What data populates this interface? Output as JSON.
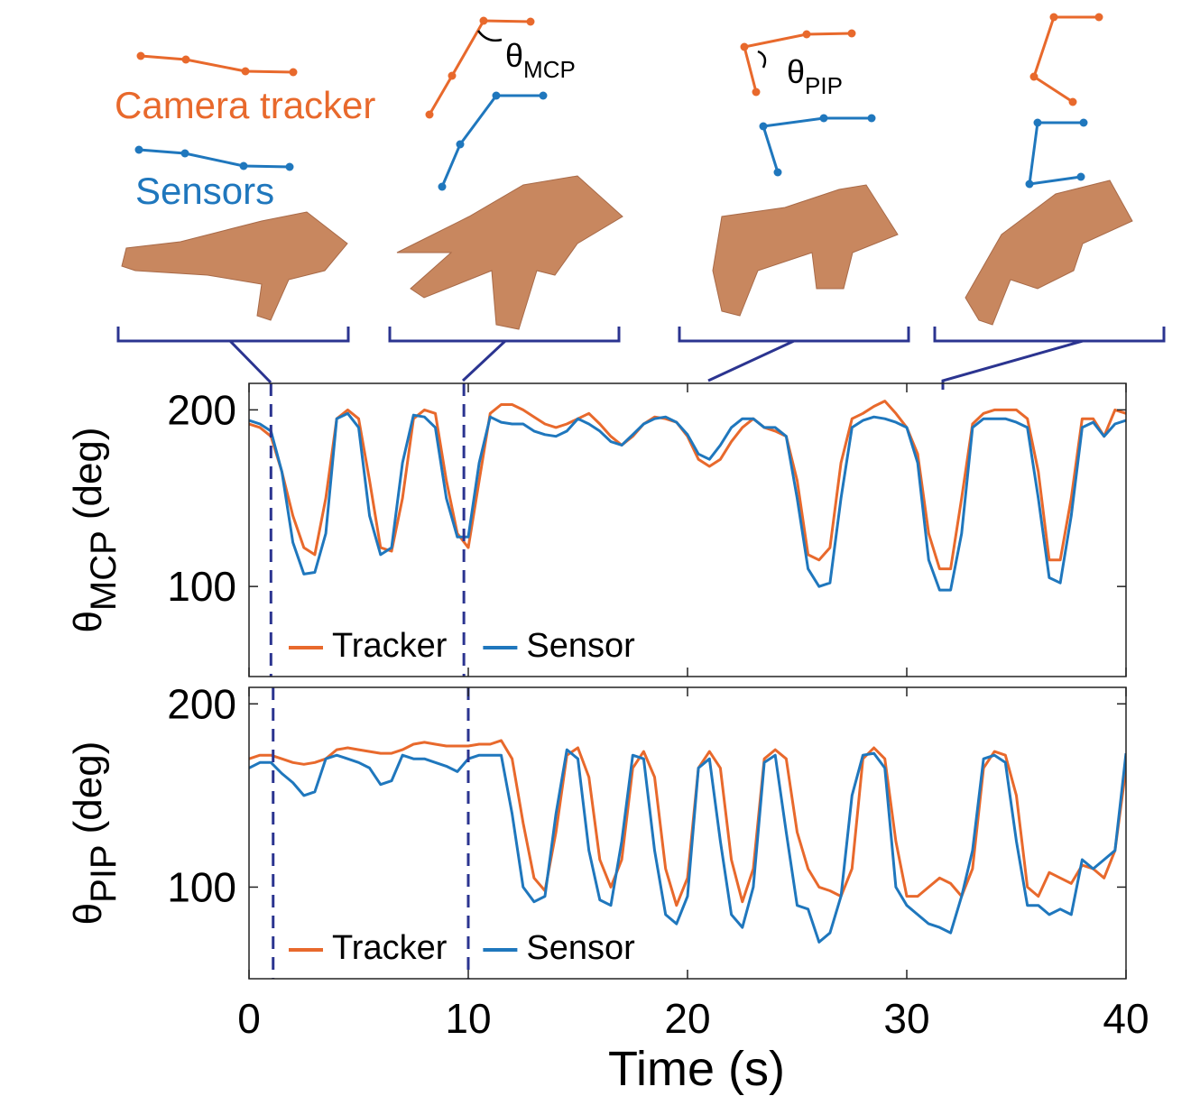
{
  "header": {
    "tracker_label": "Camera tracker",
    "sensor_label": "Sensors",
    "angle_mcp": {
      "symbol": "θ",
      "subscript": "MCP"
    },
    "angle_pip": {
      "symbol": "θ",
      "subscript": "PIP"
    }
  },
  "chart_data": [
    {
      "type": "line",
      "ylabel": {
        "symbol": "θ",
        "subscript": "MCP",
        "unit": "(deg)"
      },
      "x": [
        0,
        0.5,
        1,
        1.5,
        2,
        2.5,
        3,
        3.5,
        4,
        4.5,
        5,
        5.5,
        6,
        6.5,
        7,
        7.5,
        8,
        8.5,
        9,
        9.5,
        10,
        10.5,
        11,
        11.5,
        12,
        12.5,
        13,
        13.5,
        14,
        14.5,
        15,
        15.5,
        16,
        16.5,
        17,
        17.5,
        18,
        18.5,
        19,
        19.5,
        20,
        20.5,
        21,
        21.5,
        22,
        22.5,
        23,
        23.5,
        24,
        24.5,
        25,
        25.5,
        26,
        26.5,
        27,
        27.5,
        28,
        28.5,
        29,
        29.5,
        30,
        30.5,
        31,
        31.5,
        32,
        32.5,
        33,
        33.5,
        34,
        34.5,
        35,
        35.5,
        36,
        36.5,
        37,
        37.5,
        38,
        38.5,
        39,
        39.5,
        40
      ],
      "series": [
        {
          "name": "Tracker",
          "color": "#E8692C",
          "values": [
            192,
            190,
            185,
            165,
            140,
            122,
            118,
            150,
            195,
            200,
            195,
            160,
            122,
            120,
            150,
            195,
            200,
            198,
            160,
            130,
            122,
            160,
            198,
            203,
            203,
            200,
            196,
            192,
            190,
            192,
            195,
            198,
            192,
            185,
            180,
            185,
            192,
            196,
            195,
            193,
            185,
            172,
            168,
            172,
            182,
            190,
            195,
            190,
            188,
            185,
            160,
            118,
            115,
            122,
            170,
            195,
            198,
            202,
            205,
            198,
            190,
            175,
            130,
            110,
            110,
            150,
            192,
            198,
            200,
            200,
            200,
            195,
            165,
            115,
            115,
            150,
            195,
            195,
            185,
            200,
            198
          ]
        },
        {
          "name": "Sensor",
          "color": "#1F77BD",
          "values": [
            194,
            192,
            188,
            165,
            125,
            107,
            108,
            130,
            195,
            198,
            190,
            140,
            118,
            122,
            170,
            197,
            196,
            190,
            150,
            128,
            128,
            170,
            196,
            193,
            192,
            192,
            188,
            186,
            185,
            188,
            195,
            192,
            188,
            182,
            180,
            186,
            192,
            195,
            196,
            193,
            186,
            175,
            172,
            180,
            190,
            195,
            195,
            190,
            190,
            185,
            150,
            110,
            100,
            102,
            150,
            190,
            194,
            196,
            195,
            193,
            190,
            170,
            115,
            98,
            98,
            130,
            190,
            195,
            195,
            195,
            193,
            190,
            150,
            105,
            102,
            140,
            190,
            193,
            185,
            192,
            194
          ]
        }
      ],
      "xlim": [
        0,
        40
      ],
      "xticks": [
        0,
        10,
        20,
        30,
        40
      ],
      "show_xtick_labels": false,
      "ylim": [
        49,
        215
      ],
      "yticks": [
        100,
        200
      ],
      "vlines": [
        1,
        9.8
      ],
      "vline_color": "#2B3490",
      "legend": "lower left",
      "grid": false
    },
    {
      "type": "line",
      "ylabel": {
        "symbol": "θ",
        "subscript": "PIP",
        "unit": "(deg)"
      },
      "xlabel": "Time (s)",
      "x": [
        0,
        0.5,
        1,
        1.5,
        2,
        2.5,
        3,
        3.5,
        4,
        4.5,
        5,
        5.5,
        6,
        6.5,
        7,
        7.5,
        8,
        8.5,
        9,
        9.5,
        10,
        10.5,
        11,
        11.5,
        12,
        12.5,
        13,
        13.5,
        14,
        14.5,
        15,
        15.5,
        16,
        16.5,
        17,
        17.5,
        18,
        18.5,
        19,
        19.5,
        20,
        20.5,
        21,
        21.5,
        22,
        22.5,
        23,
        23.5,
        24,
        24.5,
        25,
        25.5,
        26,
        26.5,
        27,
        27.5,
        28,
        28.5,
        29,
        29.5,
        30,
        30.5,
        31,
        31.5,
        32,
        32.5,
        33,
        33.5,
        34,
        34.5,
        35,
        35.5,
        36,
        36.5,
        37,
        37.5,
        38,
        38.5,
        39,
        39.5,
        40
      ],
      "series": [
        {
          "name": "Tracker",
          "color": "#E8692C",
          "values": [
            170,
            172,
            172,
            170,
            168,
            167,
            168,
            170,
            175,
            176,
            175,
            174,
            173,
            173,
            175,
            178,
            179,
            178,
            177,
            177,
            177,
            178,
            178,
            180,
            170,
            135,
            105,
            98,
            130,
            172,
            176,
            160,
            115,
            100,
            115,
            165,
            174,
            160,
            110,
            90,
            105,
            165,
            174,
            165,
            115,
            92,
            110,
            170,
            175,
            170,
            130,
            110,
            100,
            98,
            95,
            110,
            170,
            176,
            170,
            125,
            95,
            95,
            100,
            105,
            102,
            95,
            110,
            165,
            174,
            172,
            150,
            100,
            95,
            108,
            105,
            102,
            112,
            110,
            105,
            120,
            165
          ]
        },
        {
          "name": "Sensor",
          "color": "#1F77BD",
          "values": [
            165,
            168,
            168,
            162,
            157,
            150,
            152,
            170,
            172,
            170,
            168,
            165,
            156,
            158,
            172,
            170,
            170,
            168,
            166,
            163,
            170,
            172,
            172,
            172,
            140,
            100,
            92,
            95,
            140,
            175,
            170,
            120,
            93,
            90,
            125,
            172,
            170,
            120,
            85,
            80,
            95,
            165,
            170,
            125,
            85,
            78,
            100,
            168,
            172,
            130,
            90,
            88,
            70,
            75,
            95,
            150,
            172,
            173,
            165,
            100,
            90,
            85,
            80,
            78,
            75,
            95,
            120,
            170,
            172,
            168,
            125,
            90,
            90,
            85,
            88,
            85,
            115,
            110,
            115,
            120,
            173
          ]
        }
      ],
      "xlim": [
        0,
        40
      ],
      "xticks": [
        0,
        10,
        20,
        30,
        40
      ],
      "show_xtick_labels": true,
      "ylim": [
        50,
        209
      ],
      "yticks": [
        100,
        200
      ],
      "vlines": [
        1.1,
        10
      ],
      "vline_color": "#2B3490",
      "legend": "lower left",
      "grid": false
    }
  ]
}
